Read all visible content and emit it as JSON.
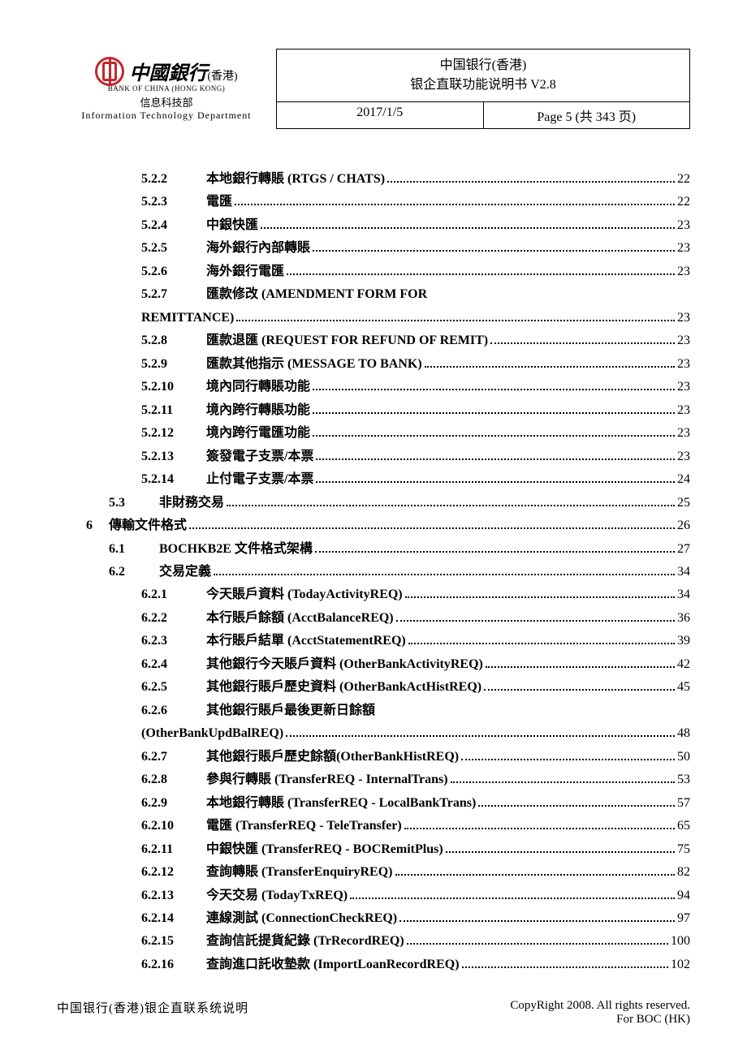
{
  "header": {
    "bank_name_cn": "中國銀行",
    "bank_name_hk": "(香港)",
    "bank_name_en": "BANK OF CHINA (HONG KONG)",
    "dept_cn": "信息科技部",
    "dept_en": "Information Technology Department",
    "title_line1": "中国银行(香港)",
    "title_line2": "银企直联功能说明书  V2.8",
    "date": "2017/1/5",
    "page_info": "Page 5 (共 343 页)"
  },
  "toc": [
    {
      "level": 3,
      "num": "5.2.2",
      "title": "本地銀行轉賬  (RTGS / CHATS)",
      "page": "22"
    },
    {
      "level": 3,
      "num": "5.2.3",
      "title": "電匯",
      "page": "22"
    },
    {
      "level": 3,
      "num": "5.2.4",
      "title": "中銀快匯",
      "page": "23"
    },
    {
      "level": 3,
      "num": "5.2.5",
      "title": "海外銀行內部轉賬",
      "page": "23"
    },
    {
      "level": 3,
      "num": "5.2.6",
      "title": "海外銀行電匯",
      "page": "23"
    },
    {
      "level": 3,
      "num": "5.2.7",
      "title": "匯款修改  (AMENDMENT FORM FOR",
      "wrap_title": "REMITTANCE)",
      "page": "23"
    },
    {
      "level": 3,
      "num": "5.2.8",
      "title": "匯款退匯  (REQUEST FOR REFUND OF REMIT)",
      "page": "23"
    },
    {
      "level": 3,
      "num": "5.2.9",
      "title": "匯款其他指示  (MESSAGE TO BANK)",
      "page": "23"
    },
    {
      "level": 3,
      "num": "5.2.10",
      "title": "境內同行轉賬功能",
      "page": "23"
    },
    {
      "level": 3,
      "num": "5.2.11",
      "title": "境內跨行轉賬功能",
      "page": "23"
    },
    {
      "level": 3,
      "num": "5.2.12",
      "title": "境內跨行電匯功能",
      "page": "23"
    },
    {
      "level": 3,
      "num": "5.2.13",
      "title": "簽發電子支票/本票",
      "page": "23"
    },
    {
      "level": 3,
      "num": "5.2.14",
      "title": "止付電子支票/本票",
      "page": "24"
    },
    {
      "level": 2,
      "num": "5.3",
      "title": "非財務交易",
      "page": "25"
    },
    {
      "level": 1,
      "num": "6",
      "title": "傳輸文件格式",
      "page": "26"
    },
    {
      "level": 2,
      "num": "6.1",
      "title": "BOCHKB2E 文件格式架構",
      "page": "27"
    },
    {
      "level": 2,
      "num": "6.2",
      "title": "交易定義",
      "page": "34"
    },
    {
      "level": 3,
      "num": "6.2.1",
      "title": "今天賬戶資料  (TodayActivityREQ)",
      "page": "34"
    },
    {
      "level": 3,
      "num": "6.2.2",
      "title": "本行賬戶餘額  (AcctBalanceREQ)",
      "page": "36"
    },
    {
      "level": 3,
      "num": "6.2.3",
      "title": "本行賬戶結單  (AcctStatementREQ)",
      "page": "39"
    },
    {
      "level": 3,
      "num": "6.2.4",
      "title": "其他銀行今天賬戶資料  (OtherBankActivityREQ)",
      "page": "42"
    },
    {
      "level": 3,
      "num": "6.2.5",
      "title": "其他銀行賬戶歷史資料  (OtherBankActHistREQ)",
      "page": "45"
    },
    {
      "level": 3,
      "num": "6.2.6",
      "title": "其他銀行賬戶最後更新日餘額",
      "wrap_title": "(OtherBankUpdBalREQ)",
      "page": "48"
    },
    {
      "level": 3,
      "num": "6.2.7",
      "title": "其他銀行賬戶歷史餘額(OtherBankHistREQ)",
      "page": "50"
    },
    {
      "level": 3,
      "num": "6.2.8",
      "title": "參與行轉賬  (TransferREQ - InternalTrans)",
      "page": "53"
    },
    {
      "level": 3,
      "num": "6.2.9",
      "title": "本地銀行轉賬  (TransferREQ - LocalBankTrans)",
      "page": "57"
    },
    {
      "level": 3,
      "num": "6.2.10",
      "title": "電匯  (TransferREQ - TeleTransfer)",
      "page": "65"
    },
    {
      "level": 3,
      "num": "6.2.11",
      "title": "中銀快匯  (TransferREQ - BOCRemitPlus)",
      "page": "75"
    },
    {
      "level": 3,
      "num": "6.2.12",
      "title": "查詢轉賬  (TransferEnquiryREQ)",
      "page": "82"
    },
    {
      "level": 3,
      "num": "6.2.13",
      "title": "今天交易  (TodayTxREQ)",
      "page": "94"
    },
    {
      "level": 3,
      "num": "6.2.14",
      "title": "連線測試  (ConnectionCheckREQ)",
      "page": "97"
    },
    {
      "level": 3,
      "num": "6.2.15",
      "title": "查詢信託提貨紀錄  (TrRecordREQ)",
      "page": "100"
    },
    {
      "level": 3,
      "num": "6.2.16",
      "title": "查詢進口託收墊款  (ImportLoanRecordREQ)",
      "page": "102"
    }
  ],
  "footer": {
    "left": "中国银行(香港)银企直联系统说明",
    "right1": "CopyRight 2008. All rights reserved.",
    "right2": "For BOC (HK)"
  }
}
